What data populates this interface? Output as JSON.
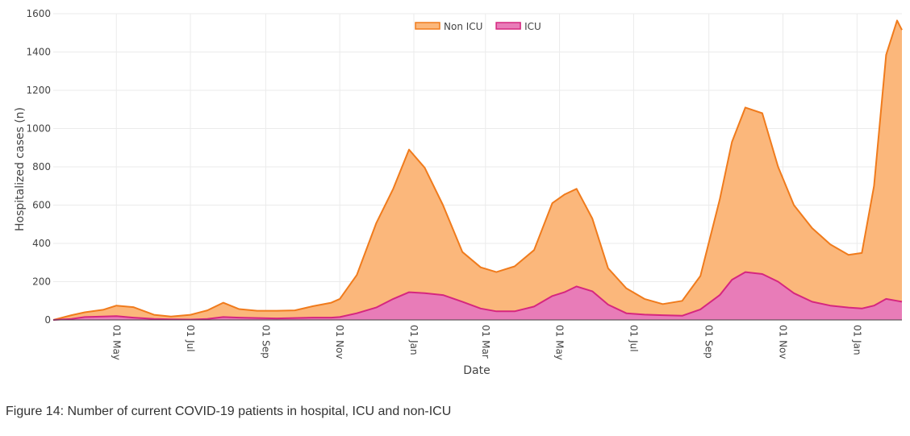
{
  "caption": "Figure 14: Number of current COVID-19 patients in hospital, ICU and non-ICU",
  "chart_data": {
    "type": "area",
    "stacked": true,
    "xlabel": "Date",
    "ylabel": "Hospitalized cases (n)",
    "ylim": [
      0,
      1600
    ],
    "xlim": [
      "2020-03-10",
      "2022-02-07"
    ],
    "y_ticks": [
      0,
      200,
      400,
      600,
      800,
      1000,
      1200,
      1400,
      1600
    ],
    "x_ticks": [
      {
        "date": "2020-05-01",
        "label": "01 May"
      },
      {
        "date": "2020-07-01",
        "label": "01 Jul"
      },
      {
        "date": "2020-09-01",
        "label": "01 Sep"
      },
      {
        "date": "2020-11-01",
        "label": "01 Nov"
      },
      {
        "date": "2021-01-01",
        "label": "01 Jan"
      },
      {
        "date": "2021-03-01",
        "label": "01 Mar"
      },
      {
        "date": "2021-05-01",
        "label": "01 May"
      },
      {
        "date": "2021-07-01",
        "label": "01 Jul"
      },
      {
        "date": "2021-09-01",
        "label": "01 Sep"
      },
      {
        "date": "2021-11-01",
        "label": "01 Nov"
      },
      {
        "date": "2022-01-01",
        "label": "01 Jan"
      }
    ],
    "grid": true,
    "legend_position": "top-center",
    "series": [
      {
        "name": "ICU",
        "color": "#d6267f",
        "fill": "#e87cb8",
        "points": [
          [
            "2020-03-10",
            0
          ],
          [
            "2020-03-25",
            5
          ],
          [
            "2020-04-05",
            15
          ],
          [
            "2020-04-20",
            18
          ],
          [
            "2020-05-01",
            20
          ],
          [
            "2020-05-15",
            12
          ],
          [
            "2020-06-01",
            5
          ],
          [
            "2020-06-15",
            3
          ],
          [
            "2020-07-01",
            2
          ],
          [
            "2020-07-15",
            5
          ],
          [
            "2020-07-28",
            15
          ],
          [
            "2020-08-10",
            12
          ],
          [
            "2020-08-25",
            10
          ],
          [
            "2020-09-10",
            8
          ],
          [
            "2020-09-25",
            10
          ],
          [
            "2020-10-10",
            12
          ],
          [
            "2020-10-25",
            12
          ],
          [
            "2020-11-01",
            15
          ],
          [
            "2020-11-15",
            35
          ],
          [
            "2020-12-01",
            65
          ],
          [
            "2020-12-15",
            110
          ],
          [
            "2020-12-28",
            145
          ],
          [
            "2021-01-10",
            140
          ],
          [
            "2021-01-25",
            130
          ],
          [
            "2021-02-10",
            95
          ],
          [
            "2021-02-25",
            60
          ],
          [
            "2021-03-10",
            45
          ],
          [
            "2021-03-25",
            45
          ],
          [
            "2021-04-10",
            70
          ],
          [
            "2021-04-25",
            125
          ],
          [
            "2021-05-05",
            145
          ],
          [
            "2021-05-15",
            175
          ],
          [
            "2021-05-28",
            150
          ],
          [
            "2021-06-10",
            80
          ],
          [
            "2021-06-25",
            35
          ],
          [
            "2021-07-10",
            28
          ],
          [
            "2021-07-25",
            25
          ],
          [
            "2021-08-10",
            22
          ],
          [
            "2021-08-25",
            55
          ],
          [
            "2021-09-10",
            130
          ],
          [
            "2021-09-20",
            210
          ],
          [
            "2021-10-01",
            250
          ],
          [
            "2021-10-15",
            240
          ],
          [
            "2021-10-28",
            200
          ],
          [
            "2021-11-10",
            140
          ],
          [
            "2021-11-25",
            95
          ],
          [
            "2021-12-10",
            75
          ],
          [
            "2021-12-25",
            65
          ],
          [
            "2022-01-05",
            60
          ],
          [
            "2022-01-15",
            75
          ],
          [
            "2022-01-25",
            110
          ],
          [
            "2022-02-07",
            95
          ]
        ]
      },
      {
        "name": "Non ICU",
        "color": "#f07b1c",
        "fill": "#fbb77b",
        "points": [
          [
            "2020-03-10",
            0
          ],
          [
            "2020-03-25",
            20
          ],
          [
            "2020-04-05",
            25
          ],
          [
            "2020-04-20",
            35
          ],
          [
            "2020-05-01",
            55
          ],
          [
            "2020-05-15",
            55
          ],
          [
            "2020-06-01",
            22
          ],
          [
            "2020-06-15",
            15
          ],
          [
            "2020-07-01",
            25
          ],
          [
            "2020-07-15",
            45
          ],
          [
            "2020-07-28",
            75
          ],
          [
            "2020-08-10",
            45
          ],
          [
            "2020-08-25",
            38
          ],
          [
            "2020-09-10",
            40
          ],
          [
            "2020-09-25",
            40
          ],
          [
            "2020-10-10",
            60
          ],
          [
            "2020-10-25",
            78
          ],
          [
            "2020-11-01",
            95
          ],
          [
            "2020-11-15",
            200
          ],
          [
            "2020-12-01",
            440
          ],
          [
            "2020-12-15",
            575
          ],
          [
            "2020-12-28",
            745
          ],
          [
            "2021-01-10",
            655
          ],
          [
            "2021-01-25",
            470
          ],
          [
            "2021-02-10",
            260
          ],
          [
            "2021-02-25",
            215
          ],
          [
            "2021-03-10",
            205
          ],
          [
            "2021-03-25",
            235
          ],
          [
            "2021-04-10",
            295
          ],
          [
            "2021-04-25",
            485
          ],
          [
            "2021-05-05",
            510
          ],
          [
            "2021-05-15",
            510
          ],
          [
            "2021-05-28",
            380
          ],
          [
            "2021-06-10",
            190
          ],
          [
            "2021-06-25",
            130
          ],
          [
            "2021-07-10",
            82
          ],
          [
            "2021-07-25",
            58
          ],
          [
            "2021-08-10",
            78
          ],
          [
            "2021-08-25",
            175
          ],
          [
            "2021-09-10",
            500
          ],
          [
            "2021-09-20",
            720
          ],
          [
            "2021-10-01",
            860
          ],
          [
            "2021-10-15",
            840
          ],
          [
            "2021-10-28",
            600
          ],
          [
            "2021-11-10",
            460
          ],
          [
            "2021-11-25",
            385
          ],
          [
            "2021-12-10",
            320
          ],
          [
            "2021-12-25",
            275
          ],
          [
            "2022-01-05",
            290
          ],
          [
            "2022-01-15",
            625
          ],
          [
            "2022-01-25",
            1275
          ],
          [
            "2022-02-03",
            1465
          ],
          [
            "2022-02-07",
            1420
          ]
        ]
      }
    ]
  }
}
